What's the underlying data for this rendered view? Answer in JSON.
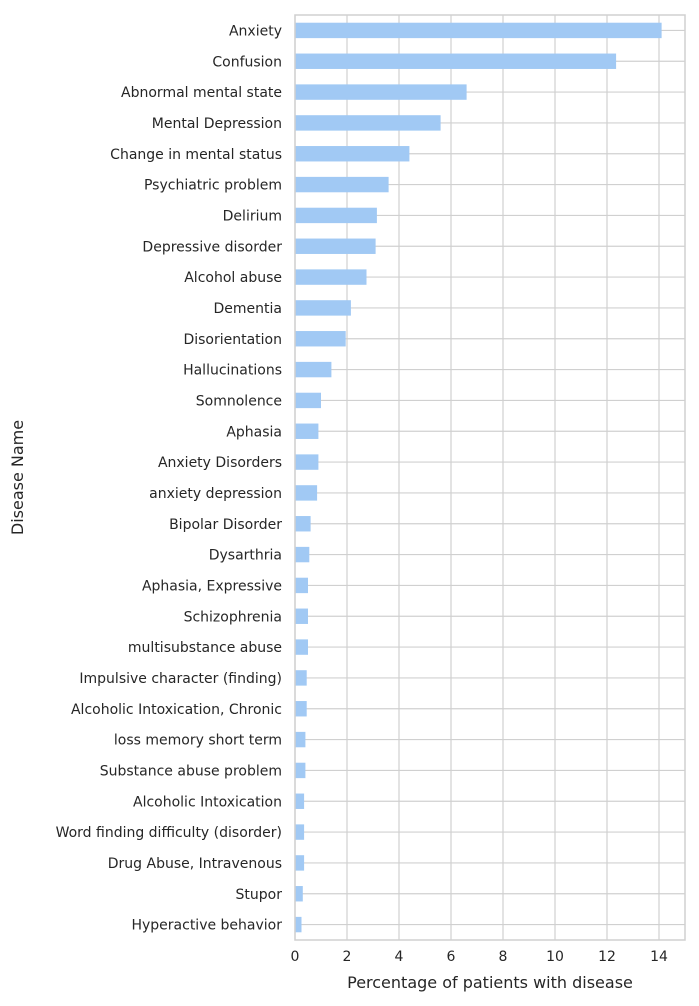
{
  "chart_data": {
    "type": "bar",
    "orientation": "horizontal",
    "xlabel": "Percentage of patients with disease",
    "ylabel": "Disease Name",
    "xlim": [
      0,
      15
    ],
    "xticks": [
      0,
      2,
      4,
      6,
      8,
      10,
      12,
      14
    ],
    "grid": true,
    "bar_color": "#a1c9f4",
    "grid_color": "#d0d0d0",
    "categories": [
      "Anxiety",
      "Confusion",
      "Abnormal mental state",
      "Mental Depression",
      "Change in mental status",
      "Psychiatric problem",
      "Delirium",
      "Depressive disorder",
      "Alcohol abuse",
      "Dementia",
      "Disorientation",
      "Hallucinations",
      "Somnolence",
      "Aphasia",
      "Anxiety Disorders",
      "anxiety depression",
      "Bipolar Disorder",
      "Dysarthria",
      "Aphasia, Expressive",
      "Schizophrenia",
      "multisubstance abuse",
      "Impulsive character (finding)",
      "Alcoholic Intoxication, Chronic",
      "loss memory short term",
      "Substance abuse problem",
      "Alcoholic Intoxication",
      "Word finding difficulty (disorder)",
      "Drug Abuse, Intravenous",
      "Stupor",
      "Hyperactive behavior"
    ],
    "values": [
      14.1,
      12.35,
      6.6,
      5.6,
      4.4,
      3.6,
      3.15,
      3.1,
      2.75,
      2.15,
      1.95,
      1.4,
      1.0,
      0.9,
      0.9,
      0.85,
      0.6,
      0.55,
      0.5,
      0.5,
      0.5,
      0.45,
      0.45,
      0.4,
      0.4,
      0.35,
      0.35,
      0.35,
      0.3,
      0.25
    ]
  }
}
